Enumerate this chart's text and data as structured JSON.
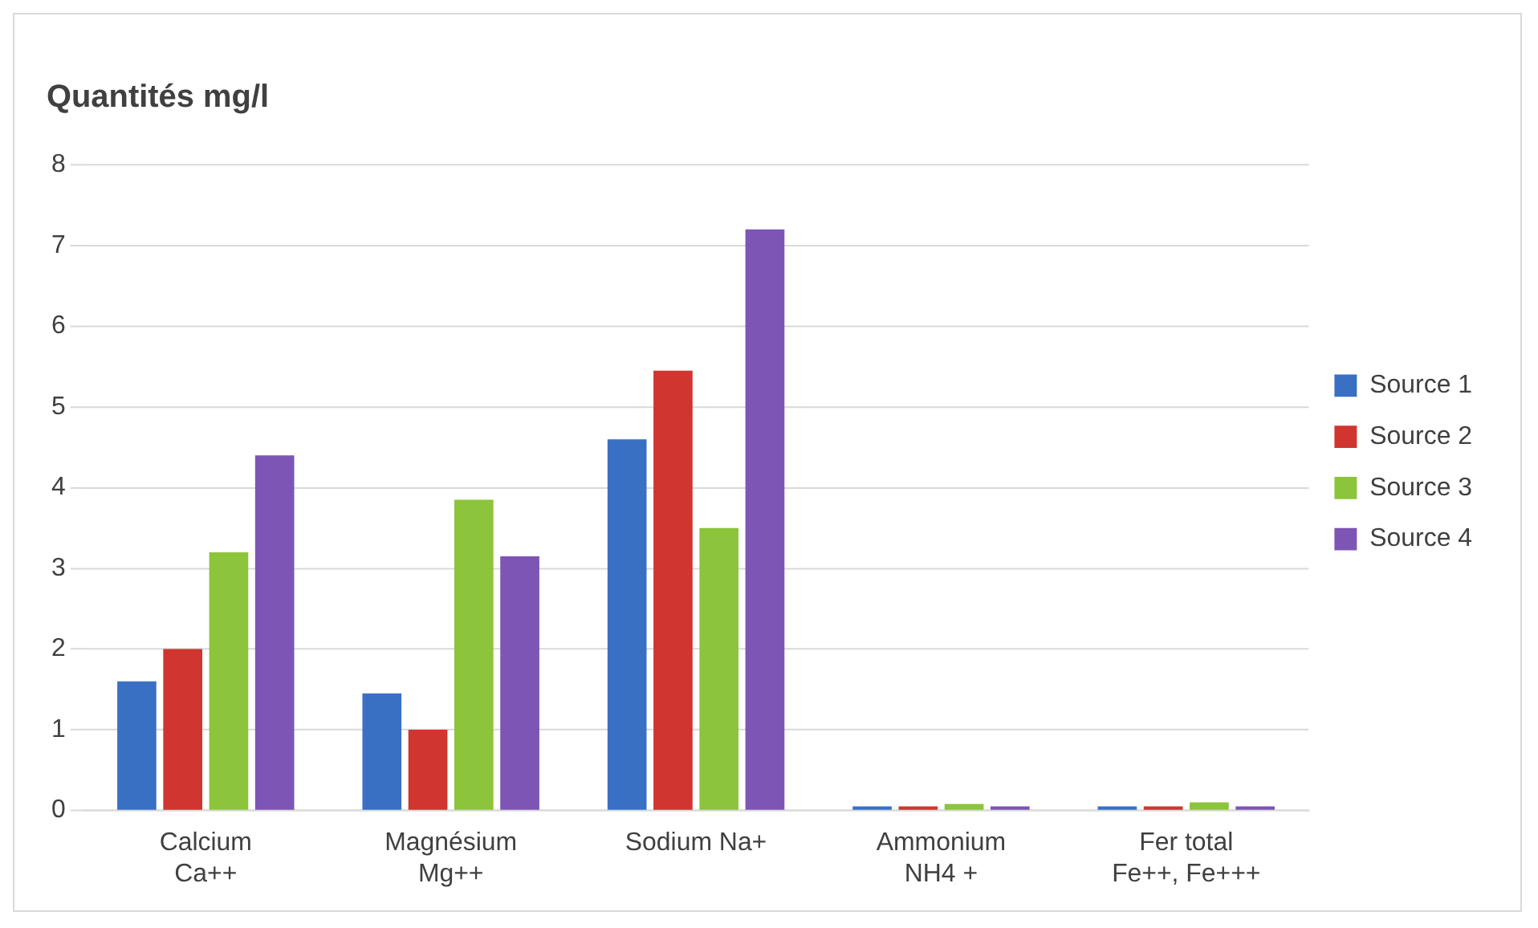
{
  "chart_data": {
    "type": "bar",
    "title": "Quantités mg/l",
    "categories": [
      "Calcium\nCa++",
      "Magnésium\nMg++",
      "Sodium Na+",
      "Ammonium\nNH4 +",
      "Fer total\nFe++, Fe+++"
    ],
    "series": [
      {
        "name": "Source 1",
        "color": "#3a70c4",
        "values": [
          1.6,
          1.45,
          4.6,
          0.05,
          0.05
        ]
      },
      {
        "name": "Source 2",
        "color": "#d0352f",
        "values": [
          2.0,
          1.0,
          5.45,
          0.05,
          0.05
        ]
      },
      {
        "name": "Source 3",
        "color": "#8cc43c",
        "values": [
          3.2,
          3.85,
          3.5,
          0.08,
          0.1
        ]
      },
      {
        "name": "Source 4",
        "color": "#7d55b4",
        "values": [
          4.4,
          3.15,
          7.2,
          0.05,
          0.05
        ]
      }
    ],
    "ylim": [
      0,
      8
    ],
    "yticks": [
      0,
      1,
      2,
      3,
      4,
      5,
      6,
      7,
      8
    ],
    "grid": "y",
    "legend": "right"
  }
}
